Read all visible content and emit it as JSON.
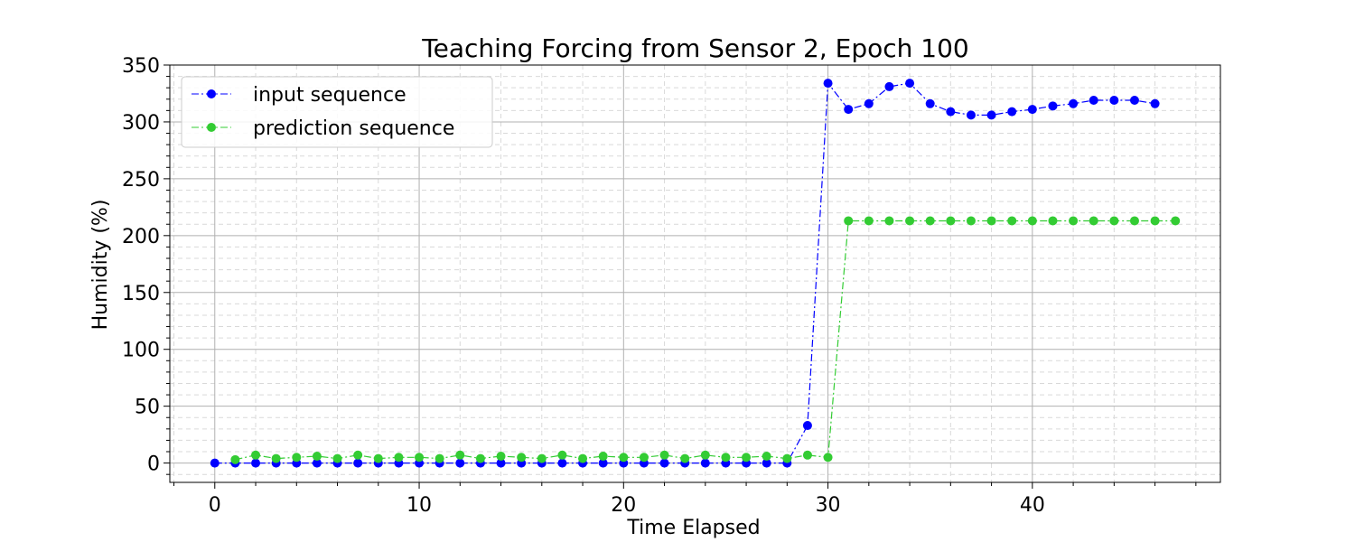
{
  "chart_data": {
    "type": "line",
    "title": "Teaching Forcing from Sensor 2, Epoch 100",
    "xlabel": "Time Elapsed",
    "ylabel": "Humidity (%)",
    "xlim": [
      -2.2,
      49.2
    ],
    "ylim": [
      -17,
      350
    ],
    "xticks": [
      0,
      10,
      20,
      30,
      40
    ],
    "yticks": [
      0,
      50,
      100,
      150,
      200,
      250,
      300,
      350
    ],
    "grid": true,
    "legend_position": "top-left",
    "series": [
      {
        "name": "input sequence",
        "color": "#0000ff",
        "x": [
          0,
          1,
          2,
          3,
          4,
          5,
          6,
          7,
          8,
          9,
          10,
          11,
          12,
          13,
          14,
          15,
          16,
          17,
          18,
          19,
          20,
          21,
          22,
          23,
          24,
          25,
          26,
          27,
          28,
          29,
          30,
          31,
          32,
          33,
          34,
          35,
          36,
          37,
          38,
          39,
          40,
          41,
          42,
          43,
          44,
          45,
          46
        ],
        "y": [
          0,
          0,
          0,
          0,
          0,
          0,
          0,
          0,
          0,
          0,
          0,
          0,
          0,
          0,
          0,
          0,
          0,
          0,
          0,
          0,
          0,
          0,
          0,
          0,
          0,
          0,
          0,
          0,
          0,
          33,
          334,
          311,
          316,
          331,
          334,
          316,
          309,
          306,
          306,
          309,
          311,
          314,
          316,
          319,
          319,
          319,
          316
        ]
      },
      {
        "name": "prediction sequence",
        "color": "#33cc33",
        "x": [
          1,
          2,
          3,
          4,
          5,
          6,
          7,
          8,
          9,
          10,
          11,
          12,
          13,
          14,
          15,
          16,
          17,
          18,
          19,
          20,
          21,
          22,
          23,
          24,
          25,
          26,
          27,
          28,
          29,
          30,
          31,
          32,
          33,
          34,
          35,
          36,
          37,
          38,
          39,
          40,
          41,
          42,
          43,
          44,
          45,
          46,
          47
        ],
        "y": [
          3,
          7,
          4,
          5,
          6,
          4,
          7,
          4,
          5,
          5,
          4,
          7,
          4,
          6,
          5,
          4,
          7,
          4,
          6,
          5,
          5,
          7,
          4,
          7,
          5,
          5,
          6,
          4,
          7,
          5,
          213,
          213,
          213,
          213,
          213,
          213,
          213,
          213,
          213,
          213,
          213,
          213,
          213,
          213,
          213,
          213,
          213
        ]
      }
    ]
  }
}
